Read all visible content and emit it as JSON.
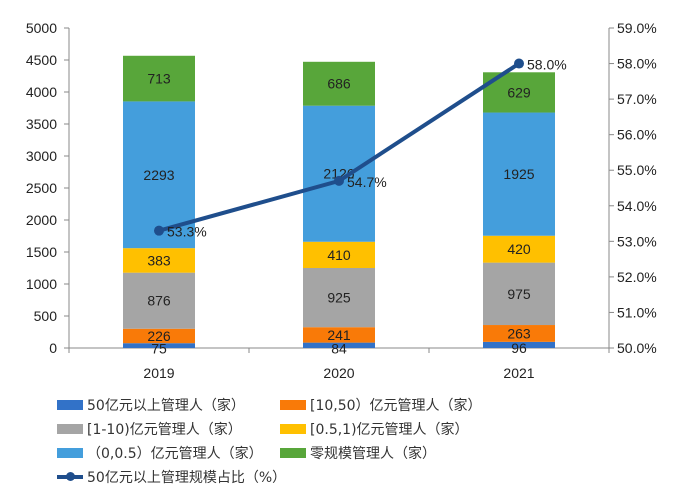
{
  "chart_data": {
    "type": "bar",
    "stacked": true,
    "categories": [
      "2019",
      "2020",
      "2021"
    ],
    "ylim": [
      0,
      5000
    ],
    "yticks": [
      0,
      500,
      1000,
      1500,
      2000,
      2500,
      3000,
      3500,
      4000,
      4500,
      5000
    ],
    "y2lim": [
      50.0,
      59.0
    ],
    "y2ticks": [
      "50.0%",
      "51.0%",
      "52.0%",
      "53.0%",
      "54.0%",
      "55.0%",
      "56.0%",
      "57.0%",
      "58.0%",
      "59.0%"
    ],
    "grid": false,
    "legend_placement": "bottom",
    "series": [
      {
        "name": "50亿元以上管理人（家）",
        "color": "#3272C8",
        "values": [
          75,
          84,
          96
        ]
      },
      {
        "name": "[10,50）亿元管理人（家）",
        "color": "#F97A08",
        "values": [
          226,
          241,
          263
        ]
      },
      {
        "name": "[1-10)亿元管理人（家）",
        "color": "#A5A5A5",
        "values": [
          876,
          925,
          975
        ]
      },
      {
        "name": "[0.5,1)亿元管理人（家）",
        "color": "#FFC000",
        "values": [
          383,
          410,
          420
        ]
      },
      {
        "name": "（0,0.5）亿元管理人（家）",
        "color": "#449EDC",
        "values": [
          2293,
          2126,
          1925
        ]
      },
      {
        "name": "零规模管理人（家）",
        "color": "#58A63A",
        "values": [
          713,
          686,
          629
        ]
      }
    ],
    "line": {
      "name": "50亿元以上管理规模占比（%）",
      "color": "#1F4E8C",
      "values": [
        53.3,
        54.7,
        58.0
      ],
      "labels": [
        "53.3%",
        "54.7%",
        "58.0%"
      ],
      "axis": "right"
    }
  }
}
